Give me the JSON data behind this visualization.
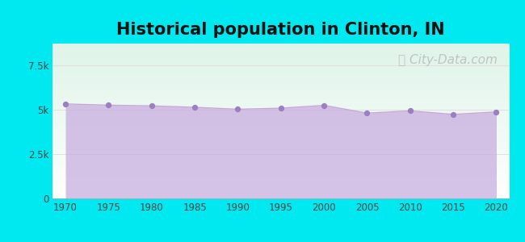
{
  "title": "Historical population in Clinton, IN",
  "title_fontsize": 15,
  "title_fontweight": "bold",
  "years": [
    1970,
    1975,
    1980,
    1985,
    1990,
    1995,
    2000,
    2005,
    2010,
    2015,
    2020
  ],
  "population": [
    5340,
    5270,
    5230,
    5150,
    5040,
    5100,
    5260,
    4820,
    4950,
    4750,
    4890
  ],
  "ylim": [
    0,
    8750
  ],
  "yticks": [
    0,
    2500,
    5000,
    7500
  ],
  "ytick_labels": [
    "0",
    "2.5k",
    "5k",
    "7.5k"
  ],
  "xticks": [
    1970,
    1975,
    1980,
    1985,
    1990,
    1995,
    2000,
    2005,
    2010,
    2015,
    2020
  ],
  "line_color": "#c8a8d8",
  "fill_color": "#c8aee0",
  "fill_alpha": 0.75,
  "marker_color": "#9b7fc0",
  "marker_size": 18,
  "bg_outer": "#00e8f0",
  "bg_plot_top": "#dff4e8",
  "bg_plot_bottom": "#ffffff",
  "grid_color": "#dddddd",
  "watermark_text": "City-Data.com",
  "watermark_color": "#bbbbbb",
  "watermark_fontsize": 11
}
